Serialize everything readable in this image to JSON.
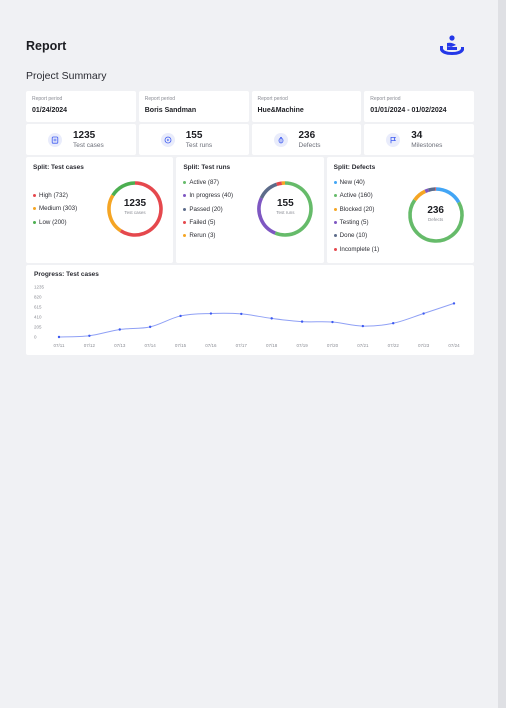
{
  "header": {
    "title": "Report",
    "logo_icon": "person-bow-logo-icon"
  },
  "summary_title": "Project Summary",
  "info_cards": [
    {
      "label": "Report period",
      "value": "01/24/2024"
    },
    {
      "label": "Report period",
      "value": "Boris Sandman"
    },
    {
      "label": "Report period",
      "value": "Hue&Machine"
    },
    {
      "label": "Report period",
      "value": "01/01/2024 - 01/02/2024"
    }
  ],
  "stat_cards": [
    {
      "value": "1235",
      "label": "Test cases",
      "icon": "test-case-icon"
    },
    {
      "value": "155",
      "label": "Test runs",
      "icon": "play-icon"
    },
    {
      "value": "236",
      "label": "Defects",
      "icon": "bug-icon"
    },
    {
      "value": "34",
      "label": "Milestones",
      "icon": "flag-icon"
    }
  ],
  "splits": [
    {
      "title": "Split: Test cases",
      "center_value": "1235",
      "center_label": "Test cases",
      "items": [
        {
          "label": "High (732)",
          "value": 732,
          "color": "#e5484d"
        },
        {
          "label": "Medium (303)",
          "value": 303,
          "color": "#f5a524"
        },
        {
          "label": "Low (200)",
          "value": 200,
          "color": "#4caf50"
        }
      ]
    },
    {
      "title": "Split: Test runs",
      "center_value": "155",
      "center_label": "Test runs",
      "items": [
        {
          "label": "Active (87)",
          "value": 87,
          "color": "#66bb6a"
        },
        {
          "label": "In progress (40)",
          "value": 40,
          "color": "#7e57c2"
        },
        {
          "label": "Passed (20)",
          "value": 20,
          "color": "#5c6b8a"
        },
        {
          "label": "Failed (5)",
          "value": 5,
          "color": "#e5484d"
        },
        {
          "label": "Rerun (3)",
          "value": 3,
          "color": "#f5a524"
        }
      ]
    },
    {
      "title": "Split: Defects",
      "center_value": "236",
      "center_label": "Defects",
      "items": [
        {
          "label": "New (40)",
          "value": 40,
          "color": "#42a5f5"
        },
        {
          "label": "Active (160)",
          "value": 160,
          "color": "#66bb6a"
        },
        {
          "label": "Blocked (20)",
          "value": 20,
          "color": "#f5a524"
        },
        {
          "label": "Testing (5)",
          "value": 5,
          "color": "#7e57c2"
        },
        {
          "label": "Done (10)",
          "value": 10,
          "color": "#5c6b8a"
        },
        {
          "label": "Incomplete (1)",
          "value": 1,
          "color": "#e5484d"
        }
      ]
    }
  ],
  "progress": {
    "title": "Progress: Test cases"
  },
  "chart_data": {
    "type": "line",
    "title": "Progress: Test cases",
    "categories": [
      "07/11",
      "07/12",
      "07/13",
      "07/14",
      "07/15",
      "07/16",
      "07/17",
      "07/18",
      "07/19",
      "07/20",
      "07/21",
      "07/22",
      "07/23",
      "07/24"
    ],
    "y_ticks": [
      "1235",
      "820",
      "615",
      "410",
      "205",
      "0"
    ],
    "values": [
      0,
      30,
      185,
      250,
      520,
      580,
      570,
      460,
      380,
      370,
      270,
      340,
      580,
      830
    ],
    "ylim": [
      0,
      1235
    ],
    "color": "#3d5af1",
    "grid": false
  }
}
